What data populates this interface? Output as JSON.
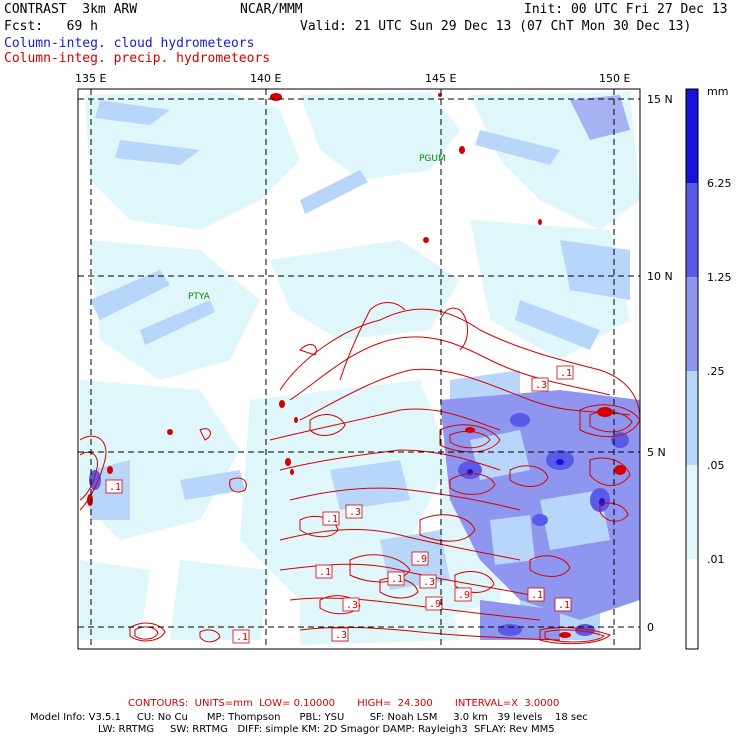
{
  "header": {
    "model_title": "CONTRAST  3km ARW",
    "center": "NCAR/MMM",
    "init": "Init: 00 UTC Fri 27 Dec 13",
    "fcst": "Fcst:   69 h",
    "valid": "Valid: 21 UTC Sun 29 Dec 13 (07 ChT Mon 30 Dec 13)",
    "field1": "Column-integ. cloud hydrometeors",
    "field2": "Column-integ. precip. hydrometeors"
  },
  "map": {
    "lon_labels": [
      "135 E",
      "140 E",
      "145 E",
      "150 E"
    ],
    "lat_labels": [
      "15 N",
      "10 N",
      "5 N",
      "0"
    ],
    "place_labels": [
      "PGUM",
      "PTYA"
    ],
    "contour_labels": [
      ".1",
      ".1",
      ".3",
      ".1",
      ".1",
      ".3",
      ".1",
      ".9",
      ".1",
      ".3",
      ".1",
      ".3",
      ".9",
      ".9",
      ".1",
      ".1",
      ".3",
      ".1"
    ],
    "colors": {
      "contour": "#d40000",
      "grid": "#000000",
      "scale_lightest": "#dff6fb",
      "scale_light": "#b8d6fa",
      "scale_mid": "#8f96f0",
      "scale_strong": "#5a5ae8",
      "scale_max": "#1414d8"
    }
  },
  "colorbar": {
    "unit": "mm",
    "ticks": [
      "6.25",
      "1.25",
      ".25",
      ".05",
      ".01"
    ]
  },
  "footer": {
    "contours": "CONTOURS:  UNITS=mm  LOW= 0.10000       HIGH=  24.300       INTERVAL=X  3.0000",
    "model_line1": "Model Info: V3.5.1     CU: No Cu      MP: Thompson      PBL: YSU        SF: Noah LSM     3.0 km   39 levels    18 sec",
    "model_line2": "LW: RRTMG     SW: RRTMG   DIFF: simple KM: 2D Smagor DAMP: Rayleigh3  SFLAY: Rev MM5"
  }
}
